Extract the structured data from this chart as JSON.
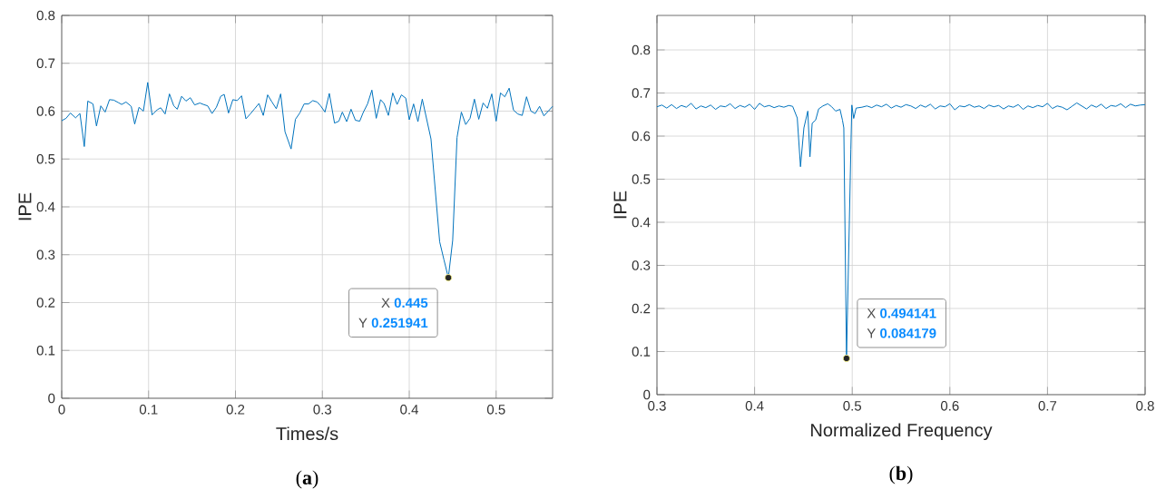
{
  "chart_data": [
    {
      "type": "line",
      "title": "(**a**)",
      "xlabel": "Times/s",
      "ylabel": "IPE",
      "xlim": [
        0,
        0.565
      ],
      "ylim": [
        0,
        0.8
      ],
      "xticks": [
        0,
        0.1,
        0.2,
        0.3,
        0.4,
        0.5
      ],
      "yticks": [
        0,
        0.1,
        0.2,
        0.3,
        0.4,
        0.5,
        0.6,
        0.7,
        0.8
      ],
      "grid": true,
      "marker": "none",
      "line_style": "solid",
      "series": [
        {
          "color": "#0072bd",
          "x": [
            0,
            0.005,
            0.01,
            0.016,
            0.021,
            0.026,
            0.03,
            0.036,
            0.04,
            0.045,
            0.05,
            0.055,
            0.06,
            0.065,
            0.069,
            0.074,
            0.08,
            0.084,
            0.089,
            0.094,
            0.099,
            0.104,
            0.11,
            0.114,
            0.119,
            0.124,
            0.129,
            0.133,
            0.138,
            0.143,
            0.148,
            0.153,
            0.159,
            0.163,
            0.168,
            0.173,
            0.178,
            0.183,
            0.187,
            0.192,
            0.197,
            0.202,
            0.207,
            0.212,
            0.217,
            0.222,
            0.227,
            0.232,
            0.237,
            0.242,
            0.247,
            0.252,
            0.257,
            0.264,
            0.269,
            0.274,
            0.279,
            0.284,
            0.289,
            0.294,
            0.298,
            0.303,
            0.308,
            0.314,
            0.319,
            0.323,
            0.328,
            0.333,
            0.338,
            0.343,
            0.347,
            0.352,
            0.357,
            0.362,
            0.367,
            0.371,
            0.376,
            0.381,
            0.386,
            0.391,
            0.396,
            0.4,
            0.405,
            0.41,
            0.415,
            0.425,
            0.43,
            0.435,
            0.44,
            0.445,
            0.45,
            0.455,
            0.46,
            0.465,
            0.47,
            0.475,
            0.48,
            0.485,
            0.49,
            0.495,
            0.5,
            0.505,
            0.51,
            0.515,
            0.52,
            0.525,
            0.53,
            0.535,
            0.54,
            0.545,
            0.55,
            0.555,
            0.56,
            0.565
          ],
          "values": [
            0.58,
            0.585,
            0.596,
            0.586,
            0.595,
            0.526,
            0.621,
            0.615,
            0.569,
            0.611,
            0.598,
            0.624,
            0.623,
            0.618,
            0.614,
            0.619,
            0.61,
            0.573,
            0.608,
            0.6,
            0.66,
            0.592,
            0.603,
            0.607,
            0.594,
            0.636,
            0.611,
            0.604,
            0.631,
            0.621,
            0.628,
            0.613,
            0.617,
            0.614,
            0.611,
            0.595,
            0.608,
            0.631,
            0.635,
            0.596,
            0.624,
            0.622,
            0.632,
            0.584,
            0.594,
            0.605,
            0.616,
            0.591,
            0.634,
            0.619,
            0.605,
            0.636,
            0.557,
            0.521,
            0.583,
            0.596,
            0.615,
            0.615,
            0.622,
            0.619,
            0.611,
            0.598,
            0.637,
            0.575,
            0.579,
            0.598,
            0.578,
            0.604,
            0.581,
            0.579,
            0.597,
            0.615,
            0.644,
            0.585,
            0.624,
            0.616,
            0.591,
            0.638,
            0.614,
            0.634,
            0.627,
            0.582,
            0.615,
            0.578,
            0.625,
            0.542,
            0.434,
            0.327,
            0.289,
            0.251941,
            0.33,
            0.545,
            0.598,
            0.572,
            0.585,
            0.625,
            0.583,
            0.617,
            0.606,
            0.636,
            0.579,
            0.638,
            0.63,
            0.648,
            0.602,
            0.594,
            0.591,
            0.63,
            0.6,
            0.595,
            0.61,
            0.59,
            0.6,
            0.61
          ]
        }
      ],
      "annotations": [
        {
          "text": "X **0.445**",
          "x": 0.445,
          "y": 0.251941
        },
        "Y **0.251941**"
      ]
    },
    {
      "type": "line",
      "title": "(**b**)",
      "xlabel": "Normalized Frequency",
      "ylabel": "IPE",
      "xlim": [
        0.3,
        0.8
      ],
      "ylim": [
        0,
        0.88
      ],
      "xticks": [
        0.3,
        0.4,
        0.5,
        0.6,
        0.7,
        0.8
      ],
      "yticks": [
        0,
        0.1,
        0.2,
        0.3,
        0.4,
        0.5,
        0.6,
        0.7,
        0.8
      ],
      "grid": true,
      "marker": "none",
      "line_style": "solid",
      "series": [
        {
          "color": "#0072bd",
          "x": [
            0.3,
            0.305,
            0.31,
            0.315,
            0.32,
            0.325,
            0.33,
            0.335,
            0.34,
            0.345,
            0.35,
            0.355,
            0.36,
            0.365,
            0.37,
            0.375,
            0.38,
            0.385,
            0.39,
            0.395,
            0.4,
            0.405,
            0.41,
            0.415,
            0.42,
            0.425,
            0.43,
            0.435,
            0.439,
            0.4437,
            0.447,
            0.4505,
            0.4545,
            0.4567,
            0.459,
            0.4625,
            0.4656,
            0.47,
            0.475,
            0.479,
            0.483,
            0.4875,
            0.49,
            0.4914,
            0.494141,
            0.4986,
            0.4996,
            0.5015,
            0.504,
            0.51,
            0.515,
            0.52,
            0.525,
            0.53,
            0.535,
            0.54,
            0.545,
            0.55,
            0.555,
            0.56,
            0.565,
            0.57,
            0.575,
            0.58,
            0.585,
            0.59,
            0.595,
            0.6,
            0.605,
            0.61,
            0.615,
            0.62,
            0.625,
            0.63,
            0.635,
            0.64,
            0.645,
            0.65,
            0.655,
            0.66,
            0.665,
            0.67,
            0.675,
            0.68,
            0.685,
            0.69,
            0.695,
            0.7,
            0.705,
            0.71,
            0.715,
            0.72,
            0.725,
            0.73,
            0.735,
            0.74,
            0.745,
            0.75,
            0.755,
            0.76,
            0.765,
            0.77,
            0.775,
            0.78,
            0.785,
            0.79,
            0.795,
            0.8
          ],
          "values": [
            0.668,
            0.672,
            0.665,
            0.673,
            0.664,
            0.671,
            0.667,
            0.676,
            0.663,
            0.67,
            0.666,
            0.672,
            0.662,
            0.67,
            0.668,
            0.675,
            0.664,
            0.671,
            0.667,
            0.674,
            0.662,
            0.676,
            0.668,
            0.671,
            0.666,
            0.67,
            0.667,
            0.671,
            0.669,
            0.642,
            0.529,
            0.619,
            0.658,
            0.552,
            0.63,
            0.637,
            0.663,
            0.67,
            0.675,
            0.668,
            0.658,
            0.662,
            0.637,
            0.619,
            0.084179,
            0.57,
            0.672,
            0.641,
            0.665,
            0.667,
            0.67,
            0.666,
            0.672,
            0.668,
            0.674,
            0.665,
            0.671,
            0.667,
            0.673,
            0.67,
            0.664,
            0.672,
            0.667,
            0.674,
            0.663,
            0.67,
            0.668,
            0.675,
            0.661,
            0.67,
            0.668,
            0.673,
            0.667,
            0.67,
            0.664,
            0.672,
            0.668,
            0.671,
            0.663,
            0.67,
            0.667,
            0.673,
            0.662,
            0.67,
            0.666,
            0.671,
            0.668,
            0.676,
            0.664,
            0.67,
            0.667,
            0.661,
            0.669,
            0.677,
            0.67,
            0.663,
            0.672,
            0.667,
            0.674,
            0.664,
            0.671,
            0.669,
            0.675,
            0.666,
            0.674,
            0.67,
            0.672,
            0.673
          ]
        }
      ],
      "annotations": [
        "X **0.494141**",
        {
          "text": "Y **0.084179**",
          "x": 0.494141,
          "y": 0.084179
        }
      ]
    }
  ]
}
